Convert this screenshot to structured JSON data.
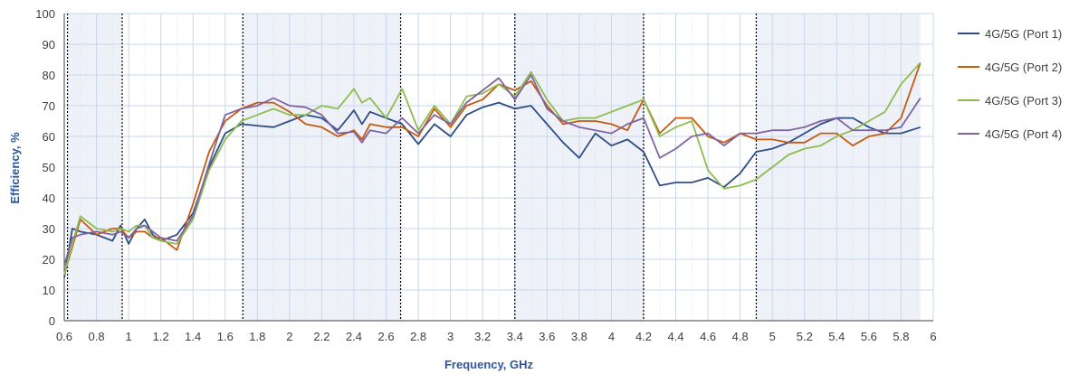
{
  "chart_data": {
    "type": "line",
    "title": "",
    "xlabel": "Frequency, GHz",
    "ylabel": "Efficiency, %",
    "xlim": [
      0.6,
      6.0
    ],
    "ylim": [
      0,
      100
    ],
    "x_ticks": [
      0.6,
      0.8,
      1,
      1.2,
      1.4,
      1.6,
      1.8,
      2,
      2.2,
      2.4,
      2.6,
      2.8,
      3,
      3.2,
      3.4,
      3.6,
      3.8,
      4,
      4.2,
      4.4,
      4.6,
      4.8,
      5,
      5.2,
      5.4,
      5.6,
      5.8,
      6
    ],
    "x_tick_labels": [
      "0.6",
      "0.8",
      "1",
      "1.2",
      "1.4",
      "1.6",
      "1.8",
      "2",
      "2.2",
      "2.4",
      "2.6",
      "2.8",
      "3",
      "3.2",
      "3.4",
      "3.6",
      "3.8",
      "4",
      "4.2",
      "4.4",
      "4.6",
      "4.8",
      "5",
      "5.2",
      "5.4",
      "5.6",
      "5.8",
      "6"
    ],
    "y_ticks": [
      0,
      10,
      20,
      30,
      40,
      50,
      60,
      70,
      80,
      90,
      100
    ],
    "y_tick_labels": [
      "0",
      "10",
      "20",
      "30",
      "40",
      "50",
      "60",
      "70",
      "80",
      "90",
      "100"
    ],
    "band_edges": [
      0.62,
      0.96,
      1.71,
      2.69,
      3.4,
      4.2,
      4.9
    ],
    "shaded_bands": [
      [
        0.62,
        0.96
      ],
      [
        1.71,
        2.69
      ],
      [
        3.4,
        4.2
      ],
      [
        4.9,
        5.92
      ]
    ],
    "grid": true,
    "legend_position": "right",
    "colors": {
      "band_fill": "#eef1f7",
      "grid": "#c9d7ec",
      "axis": "#404040",
      "band_line": "#000000"
    },
    "series": [
      {
        "name": "4G/5G (Port 1)",
        "color": "#2e4e84",
        "x": [
          0.6,
          0.65,
          0.7,
          0.8,
          0.9,
          0.95,
          1.0,
          1.05,
          1.1,
          1.15,
          1.2,
          1.3,
          1.4,
          1.5,
          1.6,
          1.7,
          1.8,
          1.9,
          2.0,
          2.1,
          2.2,
          2.3,
          2.4,
          2.45,
          2.5,
          2.6,
          2.7,
          2.8,
          2.9,
          3.0,
          3.1,
          3.2,
          3.3,
          3.4,
          3.5,
          3.6,
          3.7,
          3.8,
          3.9,
          4.0,
          4.1,
          4.2,
          4.3,
          4.4,
          4.5,
          4.6,
          4.7,
          4.8,
          4.9,
          5.0,
          5.1,
          5.2,
          5.3,
          5.4,
          5.5,
          5.6,
          5.7,
          5.8,
          5.92
        ],
        "y": [
          14,
          30,
          29,
          28,
          26,
          31,
          25,
          30,
          33,
          28,
          26,
          28,
          35,
          50,
          61,
          64,
          63.5,
          63,
          65,
          67,
          66,
          62,
          68.5,
          64,
          68,
          66,
          64,
          57.5,
          64,
          60,
          67,
          69.5,
          71,
          69,
          70,
          64,
          58,
          53,
          61,
          57,
          59,
          55,
          44,
          45,
          45,
          46.5,
          43.5,
          48,
          55,
          56,
          58,
          61,
          64,
          66,
          66,
          63,
          61,
          61,
          63
        ]
      },
      {
        "name": "4G/5G (Port 2)",
        "color": "#c55a11",
        "x": [
          0.6,
          0.65,
          0.7,
          0.8,
          0.9,
          0.95,
          1.0,
          1.05,
          1.1,
          1.15,
          1.2,
          1.3,
          1.4,
          1.5,
          1.6,
          1.7,
          1.8,
          1.9,
          2.0,
          2.1,
          2.2,
          2.3,
          2.4,
          2.45,
          2.5,
          2.6,
          2.7,
          2.8,
          2.9,
          3.0,
          3.1,
          3.2,
          3.3,
          3.4,
          3.5,
          3.6,
          3.7,
          3.8,
          3.9,
          4.0,
          4.1,
          4.2,
          4.3,
          4.4,
          4.5,
          4.6,
          4.7,
          4.8,
          4.9,
          5.0,
          5.1,
          5.2,
          5.3,
          5.4,
          5.5,
          5.6,
          5.7,
          5.8,
          5.92
        ],
        "y": [
          15,
          24,
          33,
          28,
          30,
          30,
          27,
          29,
          29,
          27,
          27,
          23,
          38,
          55,
          65,
          69,
          71,
          71,
          68,
          64,
          63,
          60,
          62,
          59,
          64,
          63,
          63,
          60,
          69,
          63,
          70,
          72,
          77,
          75,
          78,
          70,
          64,
          65,
          65,
          64,
          62,
          72,
          61,
          66,
          66,
          60,
          58,
          61,
          59,
          59,
          58,
          58,
          61,
          61,
          57,
          60,
          61,
          66,
          84
        ]
      },
      {
        "name": "4G/5G (Port 3)",
        "color": "#8fbc50",
        "x": [
          0.6,
          0.65,
          0.7,
          0.8,
          0.9,
          0.95,
          1.0,
          1.05,
          1.1,
          1.15,
          1.2,
          1.3,
          1.4,
          1.5,
          1.6,
          1.7,
          1.8,
          1.9,
          2.0,
          2.1,
          2.2,
          2.3,
          2.4,
          2.45,
          2.5,
          2.6,
          2.7,
          2.8,
          2.9,
          3.0,
          3.1,
          3.2,
          3.3,
          3.4,
          3.5,
          3.6,
          3.7,
          3.8,
          3.9,
          4.0,
          4.1,
          4.2,
          4.3,
          4.4,
          4.5,
          4.6,
          4.7,
          4.8,
          4.9,
          5.0,
          5.1,
          5.2,
          5.3,
          5.4,
          5.5,
          5.6,
          5.7,
          5.8,
          5.92
        ],
        "y": [
          15,
          25,
          34,
          30,
          29,
          30,
          29,
          31,
          31,
          27,
          26,
          25,
          33,
          49,
          59,
          65,
          67,
          69,
          67,
          67,
          70,
          69,
          75.5,
          71,
          72.5,
          66,
          75.5,
          62,
          70,
          64,
          73,
          74,
          77,
          73,
          81,
          72,
          65,
          66,
          66,
          68,
          70,
          72,
          60,
          63,
          65,
          49,
          43,
          44,
          46,
          50,
          54,
          56,
          57,
          60,
          62,
          65,
          68,
          77,
          84
        ]
      },
      {
        "name": "4G/5G (Port 4)",
        "color": "#8064a2",
        "x": [
          0.6,
          0.65,
          0.7,
          0.8,
          0.9,
          0.95,
          1.0,
          1.05,
          1.1,
          1.15,
          1.2,
          1.3,
          1.4,
          1.5,
          1.6,
          1.7,
          1.8,
          1.9,
          2.0,
          2.1,
          2.2,
          2.3,
          2.4,
          2.45,
          2.5,
          2.6,
          2.7,
          2.8,
          2.9,
          3.0,
          3.1,
          3.2,
          3.3,
          3.4,
          3.5,
          3.6,
          3.7,
          3.8,
          3.9,
          4.0,
          4.1,
          4.2,
          4.3,
          4.4,
          4.5,
          4.6,
          4.7,
          4.8,
          4.9,
          5.0,
          5.1,
          5.2,
          5.3,
          5.4,
          5.5,
          5.6,
          5.7,
          5.8,
          5.92
        ],
        "y": [
          18,
          27,
          28,
          29,
          28,
          29,
          27,
          30,
          31,
          29,
          27,
          26,
          34,
          51,
          67,
          69,
          70,
          72.5,
          70,
          69.5,
          67,
          61,
          61.5,
          58,
          62,
          61,
          66,
          61,
          67,
          64,
          71,
          75,
          79,
          72,
          80,
          69,
          65,
          63,
          62,
          61,
          64,
          66,
          53,
          56,
          60,
          61,
          57,
          61,
          61,
          62,
          62,
          63,
          65,
          66,
          62,
          62,
          62,
          63,
          72.5
        ]
      }
    ]
  }
}
